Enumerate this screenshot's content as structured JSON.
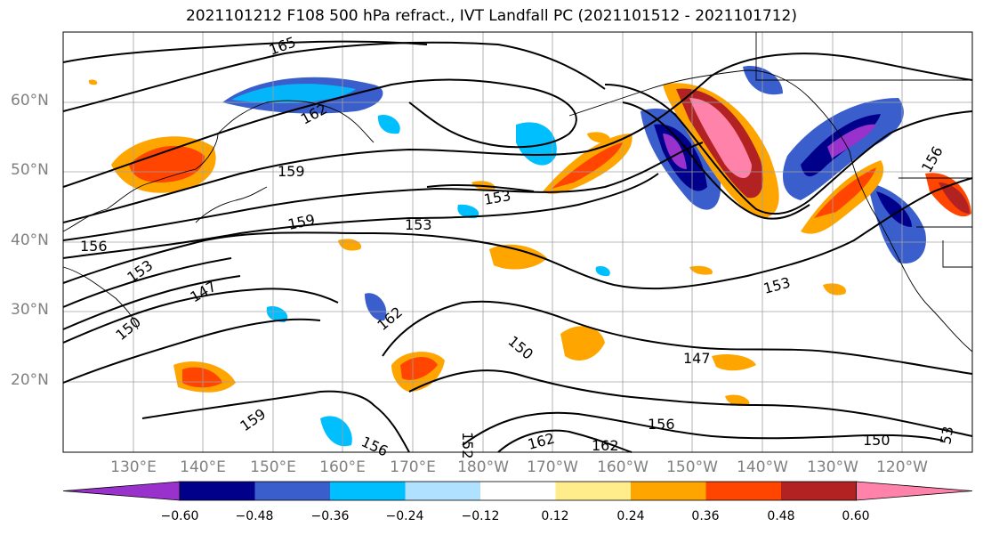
{
  "title": "2021101212 F108 500 hPa refract., IVT Landfall PC (2021101512 - 2021101712)",
  "lat_labels": [
    "60°N",
    "50°N",
    "40°N",
    "30°N",
    "20°N"
  ],
  "lon_labels": [
    "130°E",
    "140°E",
    "150°E",
    "160°E",
    "170°E",
    "180°W",
    "170°W",
    "160°W",
    "150°W",
    "140°W",
    "130°W",
    "120°W"
  ],
  "contour_labels": [
    "165",
    "162",
    "159",
    "153",
    "156",
    "159",
    "153",
    "153",
    "147",
    "150",
    "162",
    "150",
    "147",
    "153",
    "159",
    "156",
    "152",
    "162",
    "162",
    "156",
    "150",
    "53",
    "156"
  ],
  "colorbar": {
    "ticks": [
      "−0.60",
      "−0.48",
      "−0.36",
      "−0.24",
      "−0.12",
      "0.12",
      "0.24",
      "0.36",
      "0.48",
      "0.60"
    ],
    "colors": [
      "#9932CC",
      "#00008B",
      "#3A5FCD",
      "#00BFFF",
      "#B0E2FF",
      "#FFFFFF",
      "#FFEC8B",
      "#FFA500",
      "#FF4500",
      "#B22222",
      "#FF82AB"
    ]
  }
}
